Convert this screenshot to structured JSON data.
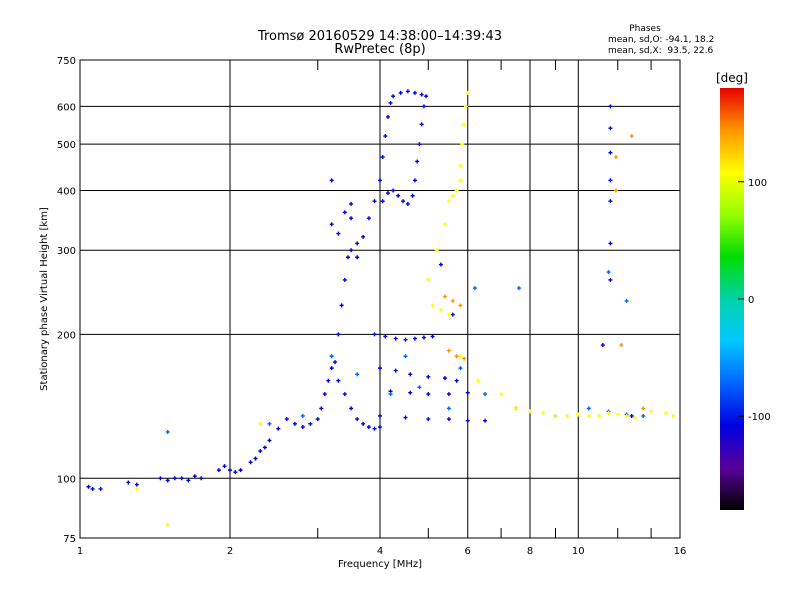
{
  "chart_data": {
    "type": "scatter",
    "title": "Tromsø 20160529 14:38:00–14:39:43",
    "subtitle": "RwPretec (8p)",
    "xlabel": "Frequency [MHz]",
    "ylabel": "Stationary phase Virtual Height [km]",
    "x_scale": "log",
    "y_scale": "log",
    "xlim": [
      1,
      16
    ],
    "ylim": [
      75,
      750
    ],
    "x_ticks": [
      1,
      2,
      4,
      6,
      8,
      10,
      16
    ],
    "x_minor_ticks": [
      3,
      5,
      7,
      9,
      12,
      14
    ],
    "y_ticks": [
      75,
      100,
      200,
      300,
      400,
      500,
      600,
      750
    ],
    "grid": true,
    "phase_stats": {
      "heading": "Phases",
      "line1": "mean, sd,O: -94.1, 18.2",
      "line2": "mean, sd,X:  93.5, 22.6"
    },
    "colorbar": {
      "label": "[deg]",
      "range": [
        -180,
        180
      ],
      "ticks": [
        100,
        0,
        -100
      ],
      "colors": [
        "#e60000",
        "#ff9600",
        "#ffff00",
        "#96ff00",
        "#00dc00",
        "#00d2aa",
        "#00c8ff",
        "#0064ff",
        "#0000e1",
        "#5a009b",
        "#000000"
      ]
    },
    "series": [
      {
        "phase": -110,
        "points": [
          [
            1.04,
            96
          ],
          [
            1.06,
            95
          ],
          [
            1.1,
            95
          ],
          [
            1.25,
            98
          ],
          [
            1.3,
            97
          ],
          [
            1.45,
            100
          ],
          [
            1.5,
            99
          ],
          [
            1.55,
            100
          ],
          [
            1.6,
            100
          ],
          [
            1.65,
            99
          ],
          [
            1.7,
            101
          ],
          [
            1.75,
            100
          ],
          [
            1.9,
            104
          ],
          [
            1.95,
            106
          ],
          [
            2.0,
            104
          ],
          [
            2.05,
            103
          ],
          [
            2.1,
            104
          ],
          [
            2.2,
            108
          ],
          [
            2.25,
            110
          ],
          [
            2.3,
            114
          ],
          [
            2.35,
            116
          ],
          [
            2.4,
            120
          ],
          [
            2.5,
            127
          ],
          [
            2.6,
            133
          ],
          [
            2.7,
            130
          ],
          [
            2.8,
            128
          ],
          [
            2.9,
            130
          ],
          [
            3.0,
            133
          ],
          [
            3.05,
            140
          ],
          [
            3.1,
            150
          ],
          [
            3.15,
            160
          ],
          [
            3.2,
            170
          ],
          [
            3.25,
            175
          ],
          [
            3.3,
            160
          ],
          [
            3.4,
            150
          ],
          [
            3.5,
            140
          ],
          [
            3.6,
            133
          ],
          [
            3.7,
            130
          ],
          [
            3.8,
            128
          ],
          [
            3.9,
            127
          ],
          [
            4.0,
            128
          ],
          [
            3.3,
            200
          ],
          [
            3.35,
            230
          ],
          [
            3.4,
            260
          ],
          [
            3.45,
            290
          ],
          [
            3.5,
            300
          ],
          [
            3.6,
            310
          ],
          [
            3.7,
            320
          ],
          [
            3.8,
            350
          ],
          [
            3.9,
            380
          ],
          [
            4.0,
            420
          ],
          [
            4.05,
            470
          ],
          [
            4.1,
            520
          ],
          [
            4.15,
            570
          ],
          [
            4.2,
            610
          ],
          [
            4.25,
            630
          ],
          [
            4.4,
            640
          ],
          [
            4.55,
            645
          ],
          [
            4.7,
            640
          ],
          [
            4.85,
            635
          ],
          [
            4.95,
            630
          ],
          [
            4.9,
            600
          ],
          [
            4.85,
            550
          ],
          [
            4.8,
            500
          ],
          [
            4.75,
            460
          ],
          [
            4.7,
            420
          ],
          [
            4.65,
            390
          ],
          [
            4.55,
            375
          ],
          [
            4.45,
            380
          ],
          [
            4.35,
            390
          ],
          [
            4.25,
            400
          ],
          [
            4.15,
            395
          ],
          [
            4.05,
            380
          ],
          [
            3.9,
            200
          ],
          [
            4.1,
            198
          ],
          [
            4.3,
            196
          ],
          [
            4.5,
            195
          ],
          [
            4.7,
            196
          ],
          [
            4.9,
            197
          ],
          [
            5.1,
            198
          ],
          [
            4.0,
            170
          ],
          [
            4.3,
            168
          ],
          [
            4.6,
            165
          ],
          [
            5.0,
            163
          ],
          [
            5.4,
            162
          ],
          [
            5.7,
            160
          ],
          [
            4.2,
            152
          ],
          [
            4.6,
            151
          ],
          [
            5.0,
            150
          ],
          [
            5.5,
            150
          ],
          [
            6.0,
            151
          ],
          [
            4.0,
            135
          ],
          [
            4.5,
            134
          ],
          [
            5.0,
            133
          ],
          [
            5.5,
            133
          ],
          [
            6.0,
            132
          ],
          [
            6.5,
            132
          ],
          [
            3.2,
            340
          ],
          [
            3.3,
            325
          ],
          [
            3.4,
            360
          ],
          [
            3.5,
            375
          ],
          [
            3.6,
            290
          ],
          [
            3.2,
            420
          ],
          [
            3.5,
            350
          ],
          [
            11.6,
            600
          ],
          [
            11.6,
            540
          ],
          [
            11.6,
            480
          ],
          [
            11.6,
            420
          ],
          [
            11.6,
            380
          ],
          [
            11.6,
            310
          ],
          [
            11.6,
            260
          ],
          [
            12.8,
            135
          ],
          [
            11.2,
            190
          ],
          [
            5.6,
            220
          ],
          [
            5.3,
            280
          ]
        ]
      },
      {
        "phase": -70,
        "points": [
          [
            1.5,
            125
          ],
          [
            2.4,
            130
          ],
          [
            2.8,
            135
          ],
          [
            3.2,
            180
          ],
          [
            3.6,
            165
          ],
          [
            4.2,
            150
          ],
          [
            4.8,
            155
          ],
          [
            5.5,
            140
          ],
          [
            6.5,
            150
          ],
          [
            7.5,
            140
          ],
          [
            9.0,
            135
          ],
          [
            10.5,
            140
          ],
          [
            11.5,
            138
          ],
          [
            12.5,
            136
          ],
          [
            13.5,
            135
          ],
          [
            6.2,
            250
          ],
          [
            7.6,
            250
          ],
          [
            11.5,
            270
          ],
          [
            12.5,
            235
          ],
          [
            4.5,
            180
          ],
          [
            5.8,
            170
          ]
        ]
      },
      {
        "phase": 100,
        "points": [
          [
            5.0,
            260
          ],
          [
            5.2,
            300
          ],
          [
            5.4,
            340
          ],
          [
            5.5,
            380
          ],
          [
            5.6,
            390
          ],
          [
            5.7,
            400
          ],
          [
            5.8,
            420
          ],
          [
            5.8,
            450
          ],
          [
            5.85,
            500
          ],
          [
            5.9,
            550
          ],
          [
            5.95,
            600
          ],
          [
            6.0,
            640
          ],
          [
            5.1,
            230
          ],
          [
            5.3,
            225
          ],
          [
            5.5,
            220
          ],
          [
            5.8,
            180
          ],
          [
            6.3,
            160
          ],
          [
            7.0,
            150
          ],
          [
            7.5,
            140
          ],
          [
            8.0,
            138
          ],
          [
            8.5,
            137
          ],
          [
            9.0,
            135
          ],
          [
            9.5,
            135
          ],
          [
            10.0,
            136
          ],
          [
            10.5,
            135
          ],
          [
            11.0,
            135
          ],
          [
            11.5,
            137
          ],
          [
            12.0,
            136
          ],
          [
            12.5,
            135
          ],
          [
            13.0,
            134
          ],
          [
            14.0,
            138
          ],
          [
            15.0,
            137
          ],
          [
            15.5,
            135
          ],
          [
            1.3,
            95
          ],
          [
            1.5,
            80
          ],
          [
            2.3,
            130
          ]
        ]
      },
      {
        "phase": 150,
        "points": [
          [
            5.4,
            240
          ],
          [
            5.6,
            235
          ],
          [
            5.8,
            230
          ],
          [
            5.5,
            185
          ],
          [
            5.7,
            180
          ],
          [
            5.9,
            178
          ],
          [
            11.9,
            470
          ],
          [
            12.8,
            520
          ],
          [
            11.9,
            400
          ],
          [
            13.5,
            140
          ],
          [
            12.2,
            190
          ]
        ]
      }
    ]
  }
}
